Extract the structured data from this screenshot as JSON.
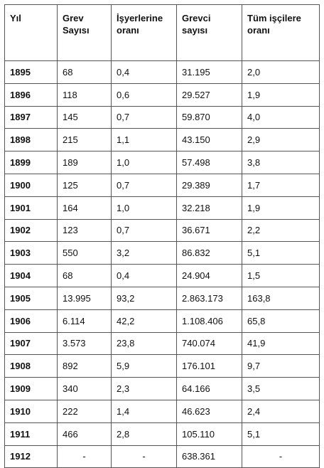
{
  "table": {
    "header": [
      "Yıl",
      "Grev\nSayısı",
      "İşyerlerine\noranı",
      "Grevci\nsayısı",
      "Tüm işçilere\noranı"
    ],
    "rows": [
      [
        "1895",
        "68",
        "0,4",
        "31.195",
        "2,0"
      ],
      [
        "1896",
        "118",
        "0,6",
        "29.527",
        "1,9"
      ],
      [
        "1897",
        "145",
        "0,7",
        "59.870",
        "4,0"
      ],
      [
        "1898",
        "215",
        "1,1",
        "43.150",
        "2,9"
      ],
      [
        "1899",
        "189",
        "1,0",
        "57.498",
        "3,8"
      ],
      [
        "1900",
        "125",
        "0,7",
        "29.389",
        "1,7"
      ],
      [
        "1901",
        "164",
        "1,0",
        "32.218",
        "1,9"
      ],
      [
        "1902",
        "123",
        "0,7",
        "36.671",
        "2,2"
      ],
      [
        "1903",
        "550",
        "3,2",
        "86.832",
        "5,1"
      ],
      [
        "1904",
        "68",
        "0,4",
        "24.904",
        "1,5"
      ],
      [
        "1905",
        "13.995",
        "93,2",
        "2.863.173",
        "163,8"
      ],
      [
        "1906",
        "6.114",
        "42,2",
        "1.108.406",
        "65,8"
      ],
      [
        "1907",
        "3.573",
        "23,8",
        "740.074",
        "41,9"
      ],
      [
        "1908",
        "892",
        "5,9",
        "176.101",
        "9,7"
      ],
      [
        "1909",
        "340",
        "2,3",
        "64.166",
        "3,5"
      ],
      [
        "1910",
        "222",
        "1,4",
        "46.623",
        "2,4"
      ],
      [
        "1911",
        "466",
        "2,8",
        "105.110",
        "5,1"
      ],
      [
        "1912",
        "-",
        "-",
        "638.361",
        "-"
      ]
    ]
  }
}
